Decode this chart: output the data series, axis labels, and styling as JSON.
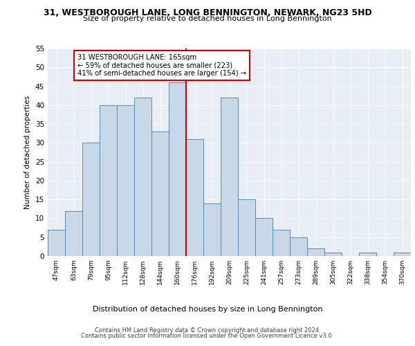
{
  "title_line1": "31, WESTBOROUGH LANE, LONG BENNINGTON, NEWARK, NG23 5HD",
  "title_line2": "Size of property relative to detached houses in Long Bennington",
  "xlabel": "Distribution of detached houses by size in Long Bennington",
  "ylabel": "Number of detached properties",
  "bin_labels": [
    "47sqm",
    "63sqm",
    "79sqm",
    "95sqm",
    "112sqm",
    "128sqm",
    "144sqm",
    "160sqm",
    "176sqm",
    "192sqm",
    "209sqm",
    "225sqm",
    "241sqm",
    "257sqm",
    "273sqm",
    "289sqm",
    "305sqm",
    "322sqm",
    "338sqm",
    "354sqm",
    "370sqm"
  ],
  "bin_counts": [
    7,
    12,
    30,
    40,
    40,
    42,
    33,
    46,
    31,
    14,
    42,
    15,
    10,
    7,
    5,
    2,
    1,
    0,
    1,
    0,
    1
  ],
  "bar_color": "#c8d8e8",
  "bar_edge_color": "#5a8ab0",
  "vline_x_index": 7.5,
  "vline_color": "#cc0000",
  "annotation_text": "31 WESTBOROUGH LANE: 165sqm\n← 59% of detached houses are smaller (223)\n41% of semi-detached houses are larger (154) →",
  "annotation_box_color": "#ffffff",
  "annotation_box_edge_color": "#cc0000",
  "ylim": [
    0,
    55
  ],
  "yticks": [
    0,
    5,
    10,
    15,
    20,
    25,
    30,
    35,
    40,
    45,
    50,
    55
  ],
  "background_color": "#e8eef5",
  "grid_color": "#ffffff",
  "footer_line1": "Contains HM Land Registry data © Crown copyright and database right 2024.",
  "footer_line2": "Contains public sector information licensed under the Open Government Licence v3.0."
}
